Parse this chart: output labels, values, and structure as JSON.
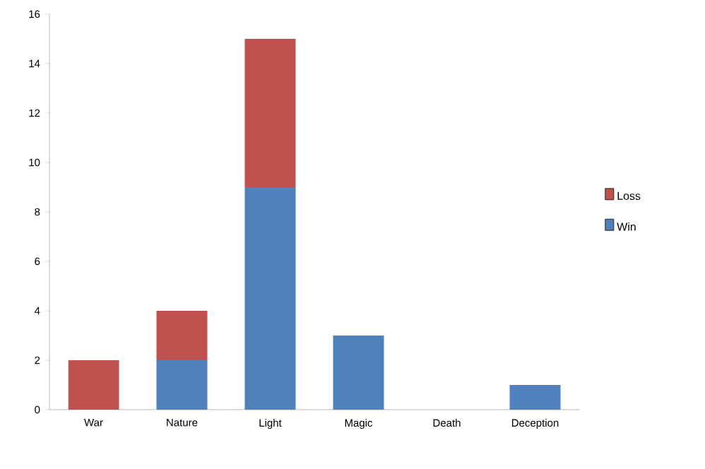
{
  "chart_data": {
    "type": "bar",
    "stacked": true,
    "categories": [
      "War",
      "Nature",
      "Light",
      "Magic",
      "Death",
      "Deception"
    ],
    "series": [
      {
        "name": "Win",
        "color": "#4f81bd",
        "values": [
          0,
          2,
          9,
          3,
          0,
          1
        ]
      },
      {
        "name": "Loss",
        "color": "#c0504d",
        "values": [
          2,
          2,
          6,
          0,
          0,
          0
        ]
      }
    ],
    "ylim": [
      0,
      16
    ],
    "yticks": [
      0,
      2,
      4,
      6,
      8,
      10,
      12,
      14,
      16
    ],
    "legend": "right",
    "grid": false
  }
}
